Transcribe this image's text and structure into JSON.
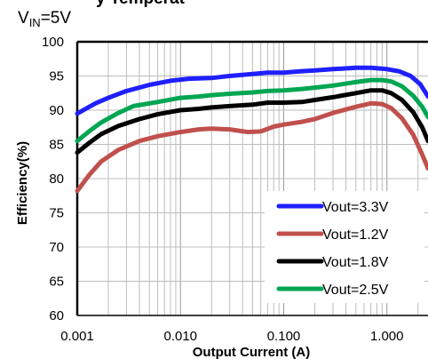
{
  "chart_data": {
    "type": "line",
    "title_fragment": "y Temperat",
    "subtitle": {
      "prefix": "V",
      "sub": "IN",
      "suffix": "=5V"
    },
    "xlabel": "Output Current (A)",
    "ylabel": "Efficiency(%)",
    "x_scale": "log",
    "xlim": [
      0.001,
      2.5
    ],
    "ylim": [
      60,
      100
    ],
    "x_ticks": [
      0.001,
      0.01,
      0.1,
      1
    ],
    "x_tick_labels": [
      "0.001",
      "0.010",
      "0.100",
      "1.000"
    ],
    "y_ticks": [
      60,
      65,
      70,
      75,
      80,
      85,
      90,
      95,
      100
    ],
    "y_tick_labels": [
      "60",
      "65",
      "70",
      "75",
      "80",
      "85",
      "90",
      "95",
      "100"
    ],
    "grid": true,
    "legend_position": "bottom-right",
    "series": [
      {
        "name": "Vout=3.3V",
        "color": "#1f1fff",
        "points": [
          [
            0.001,
            89.5
          ],
          [
            0.0015,
            91.0
          ],
          [
            0.002,
            91.8
          ],
          [
            0.003,
            92.8
          ],
          [
            0.005,
            93.7
          ],
          [
            0.008,
            94.3
          ],
          [
            0.012,
            94.6
          ],
          [
            0.02,
            94.7
          ],
          [
            0.03,
            95.0
          ],
          [
            0.05,
            95.3
          ],
          [
            0.07,
            95.5
          ],
          [
            0.1,
            95.5
          ],
          [
            0.15,
            95.7
          ],
          [
            0.2,
            95.8
          ],
          [
            0.3,
            96.0
          ],
          [
            0.5,
            96.2
          ],
          [
            0.7,
            96.2
          ],
          [
            1.0,
            96.0
          ],
          [
            1.3,
            95.7
          ],
          [
            1.7,
            95.0
          ],
          [
            2.1,
            93.8
          ],
          [
            2.5,
            92.0
          ]
        ]
      },
      {
        "name": "Vout=1.2V",
        "color": "#c0504d",
        "points": [
          [
            0.001,
            78.2
          ],
          [
            0.0013,
            80.5
          ],
          [
            0.0017,
            82.5
          ],
          [
            0.0025,
            84.2
          ],
          [
            0.004,
            85.5
          ],
          [
            0.006,
            86.2
          ],
          [
            0.01,
            86.8
          ],
          [
            0.015,
            87.2
          ],
          [
            0.02,
            87.3
          ],
          [
            0.03,
            87.2
          ],
          [
            0.045,
            86.8
          ],
          [
            0.06,
            86.9
          ],
          [
            0.08,
            87.6
          ],
          [
            0.1,
            87.9
          ],
          [
            0.15,
            88.3
          ],
          [
            0.2,
            88.7
          ],
          [
            0.3,
            89.6
          ],
          [
            0.5,
            90.5
          ],
          [
            0.7,
            91.0
          ],
          [
            0.9,
            90.9
          ],
          [
            1.1,
            90.3
          ],
          [
            1.4,
            88.8
          ],
          [
            1.8,
            86.4
          ],
          [
            2.2,
            83.5
          ],
          [
            2.5,
            81.5
          ]
        ]
      },
      {
        "name": "Vout=1.8V",
        "color": "#000000",
        "points": [
          [
            0.001,
            83.8
          ],
          [
            0.0013,
            85.2
          ],
          [
            0.0017,
            86.5
          ],
          [
            0.0025,
            87.7
          ],
          [
            0.004,
            88.7
          ],
          [
            0.006,
            89.4
          ],
          [
            0.01,
            90.0
          ],
          [
            0.015,
            90.2
          ],
          [
            0.02,
            90.4
          ],
          [
            0.03,
            90.6
          ],
          [
            0.05,
            90.8
          ],
          [
            0.07,
            91.1
          ],
          [
            0.1,
            91.1
          ],
          [
            0.15,
            91.2
          ],
          [
            0.2,
            91.5
          ],
          [
            0.3,
            91.9
          ],
          [
            0.5,
            92.5
          ],
          [
            0.7,
            92.9
          ],
          [
            0.9,
            92.9
          ],
          [
            1.1,
            92.5
          ],
          [
            1.4,
            91.5
          ],
          [
            1.8,
            89.7
          ],
          [
            2.2,
            87.5
          ],
          [
            2.5,
            85.5
          ]
        ]
      },
      {
        "name": "Vout=2.5V",
        "color": "#00a651",
        "points": [
          [
            0.001,
            85.5
          ],
          [
            0.0013,
            86.9
          ],
          [
            0.0017,
            88.2
          ],
          [
            0.0025,
            89.6
          ],
          [
            0.0035,
            90.6
          ],
          [
            0.006,
            91.2
          ],
          [
            0.01,
            91.8
          ],
          [
            0.015,
            92.0
          ],
          [
            0.02,
            92.2
          ],
          [
            0.03,
            92.4
          ],
          [
            0.05,
            92.6
          ],
          [
            0.07,
            92.8
          ],
          [
            0.1,
            92.9
          ],
          [
            0.15,
            93.1
          ],
          [
            0.2,
            93.3
          ],
          [
            0.3,
            93.6
          ],
          [
            0.5,
            94.1
          ],
          [
            0.7,
            94.4
          ],
          [
            0.9,
            94.4
          ],
          [
            1.1,
            94.2
          ],
          [
            1.4,
            93.5
          ],
          [
            1.8,
            92.1
          ],
          [
            2.2,
            90.5
          ],
          [
            2.5,
            89.0
          ]
        ]
      }
    ]
  }
}
